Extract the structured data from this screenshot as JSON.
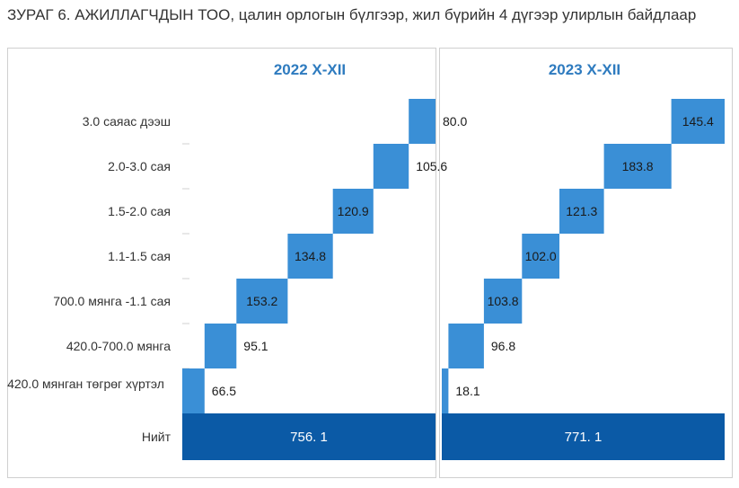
{
  "figure_title": "ЗУРАГ 6.     АЖИЛЛАГЧДЫН ТОО, цалин орлогын бүлгээр, жил бүрийн 4 дүгээр улирлын байдлаар",
  "colors": {
    "segment": "#3a8fd6",
    "total": "#0b5aa6",
    "title_blue": "#2e7bbf",
    "gridline": "#d0d0d0"
  },
  "chart_data": [
    {
      "type": "bar",
      "title": "2022 X-XII",
      "categories": [
        "3.0 саяас дээш",
        "2.0-3.0 сая",
        "1.5-2.0 сая",
        "1.1-1.5 сая",
        "700.0 мянга -1.1 сая",
        "420.0-700.0  мянга",
        "420.0 мянган төгрөг хүртэл"
      ],
      "values": [
        80.0,
        105.6,
        120.9,
        134.8,
        153.2,
        95.1,
        66.5
      ],
      "value_labels": [
        "80.0",
        "105.6",
        "120.9",
        "134.8",
        "153.2",
        "95.1",
        "66.5"
      ],
      "total_category": "Нийт",
      "total": 756.1,
      "total_label": "756. 1"
    },
    {
      "type": "bar",
      "title": "2023 X-XII",
      "categories": [
        "3.0 саяас дээш",
        "2.0-3.0 сая",
        "1.5-2.0 сая",
        "1.1-1.5 сая",
        "700.0 мянга -1.1 сая",
        "420.0-700.0  мянга",
        "420.0 мянган төгрөг хүртэл"
      ],
      "values": [
        145.4,
        183.8,
        121.3,
        102.0,
        103.8,
        96.8,
        18.1
      ],
      "value_labels": [
        "145.4",
        "183.8",
        "121.3",
        "102.0",
        "103.8",
        "96.8",
        "18.1"
      ],
      "total_category": "Нийт",
      "total": 771.1,
      "total_label": "771. 1"
    }
  ]
}
